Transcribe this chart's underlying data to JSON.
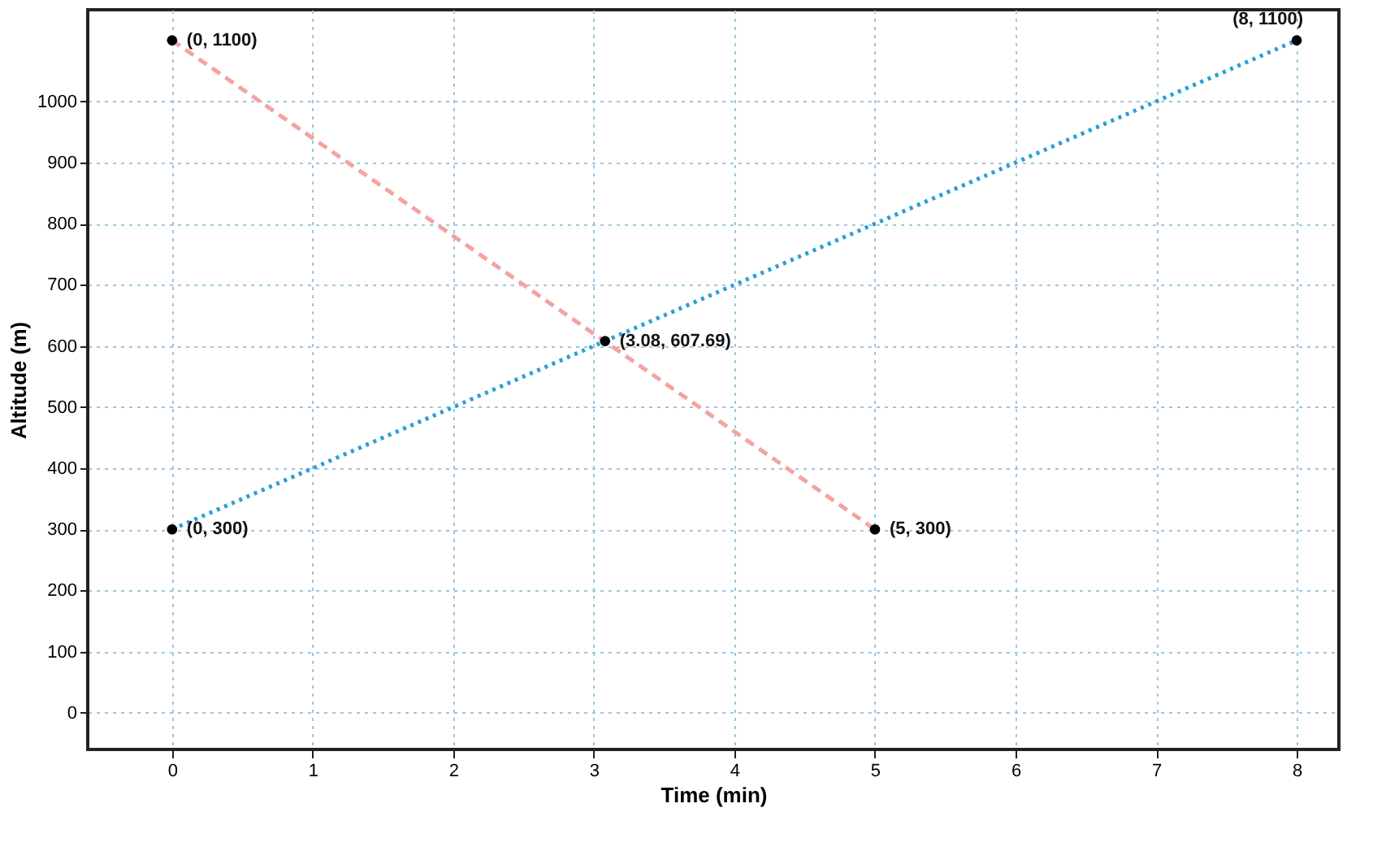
{
  "chart_data": {
    "type": "line",
    "xlabel": "Time (min)",
    "ylabel": "Altitude (m)",
    "xlim": [
      -0.6,
      8.3
    ],
    "xticks": [
      0,
      1,
      2,
      3,
      4,
      5,
      6,
      7,
      8
    ],
    "ylim": [
      -60,
      1150
    ],
    "yticks": [
      0,
      100,
      200,
      300,
      400,
      500,
      600,
      700,
      800,
      900,
      1000
    ],
    "grid": true,
    "series": [
      {
        "color": "#f4a3a3",
        "line_style": "dashed",
        "x": [
          0,
          5
        ],
        "values": [
          1100,
          300
        ]
      },
      {
        "color": "#2a9fd8",
        "line_style": "dotted",
        "x": [
          0,
          8
        ],
        "values": [
          300,
          1100
        ]
      },
      {
        "type": "scatter",
        "color": "#000000",
        "marker": "circle",
        "x": [
          0,
          0,
          3.08,
          5,
          8
        ],
        "values": [
          1100,
          300,
          608,
          300,
          1100
        ]
      }
    ],
    "annotations": [
      {
        "text": "(0, 1100)",
        "x": 0,
        "y": 1100
      },
      {
        "text": "(0, 300)",
        "x": 0,
        "y": 300
      },
      {
        "text": "(3.08, 607.69)",
        "x": 3.08,
        "y": 607.69
      },
      {
        "text": "(5, 300)",
        "x": 5,
        "y": 300
      },
      {
        "text": "(8, 1100)",
        "x": 8,
        "y": 1100
      }
    ]
  }
}
